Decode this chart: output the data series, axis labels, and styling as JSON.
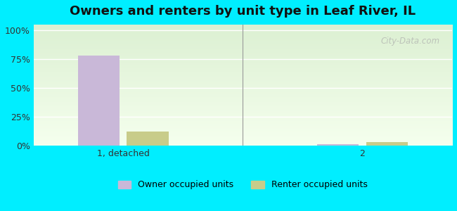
{
  "title": "Owners and renters by unit type in Leaf River, IL",
  "categories": [
    "1, detached",
    "2"
  ],
  "owner_values": [
    78,
    1
  ],
  "renter_values": [
    12,
    3
  ],
  "owner_color": "#c9b8d8",
  "renter_color": "#c8cc8a",
  "background_color": "#00eeff",
  "yticks": [
    0,
    25,
    50,
    75,
    100
  ],
  "ylim": [
    0,
    105
  ],
  "bar_width": 0.35,
  "legend_owner": "Owner occupied units",
  "legend_renter": "Renter occupied units",
  "watermark": "City-Data.com"
}
